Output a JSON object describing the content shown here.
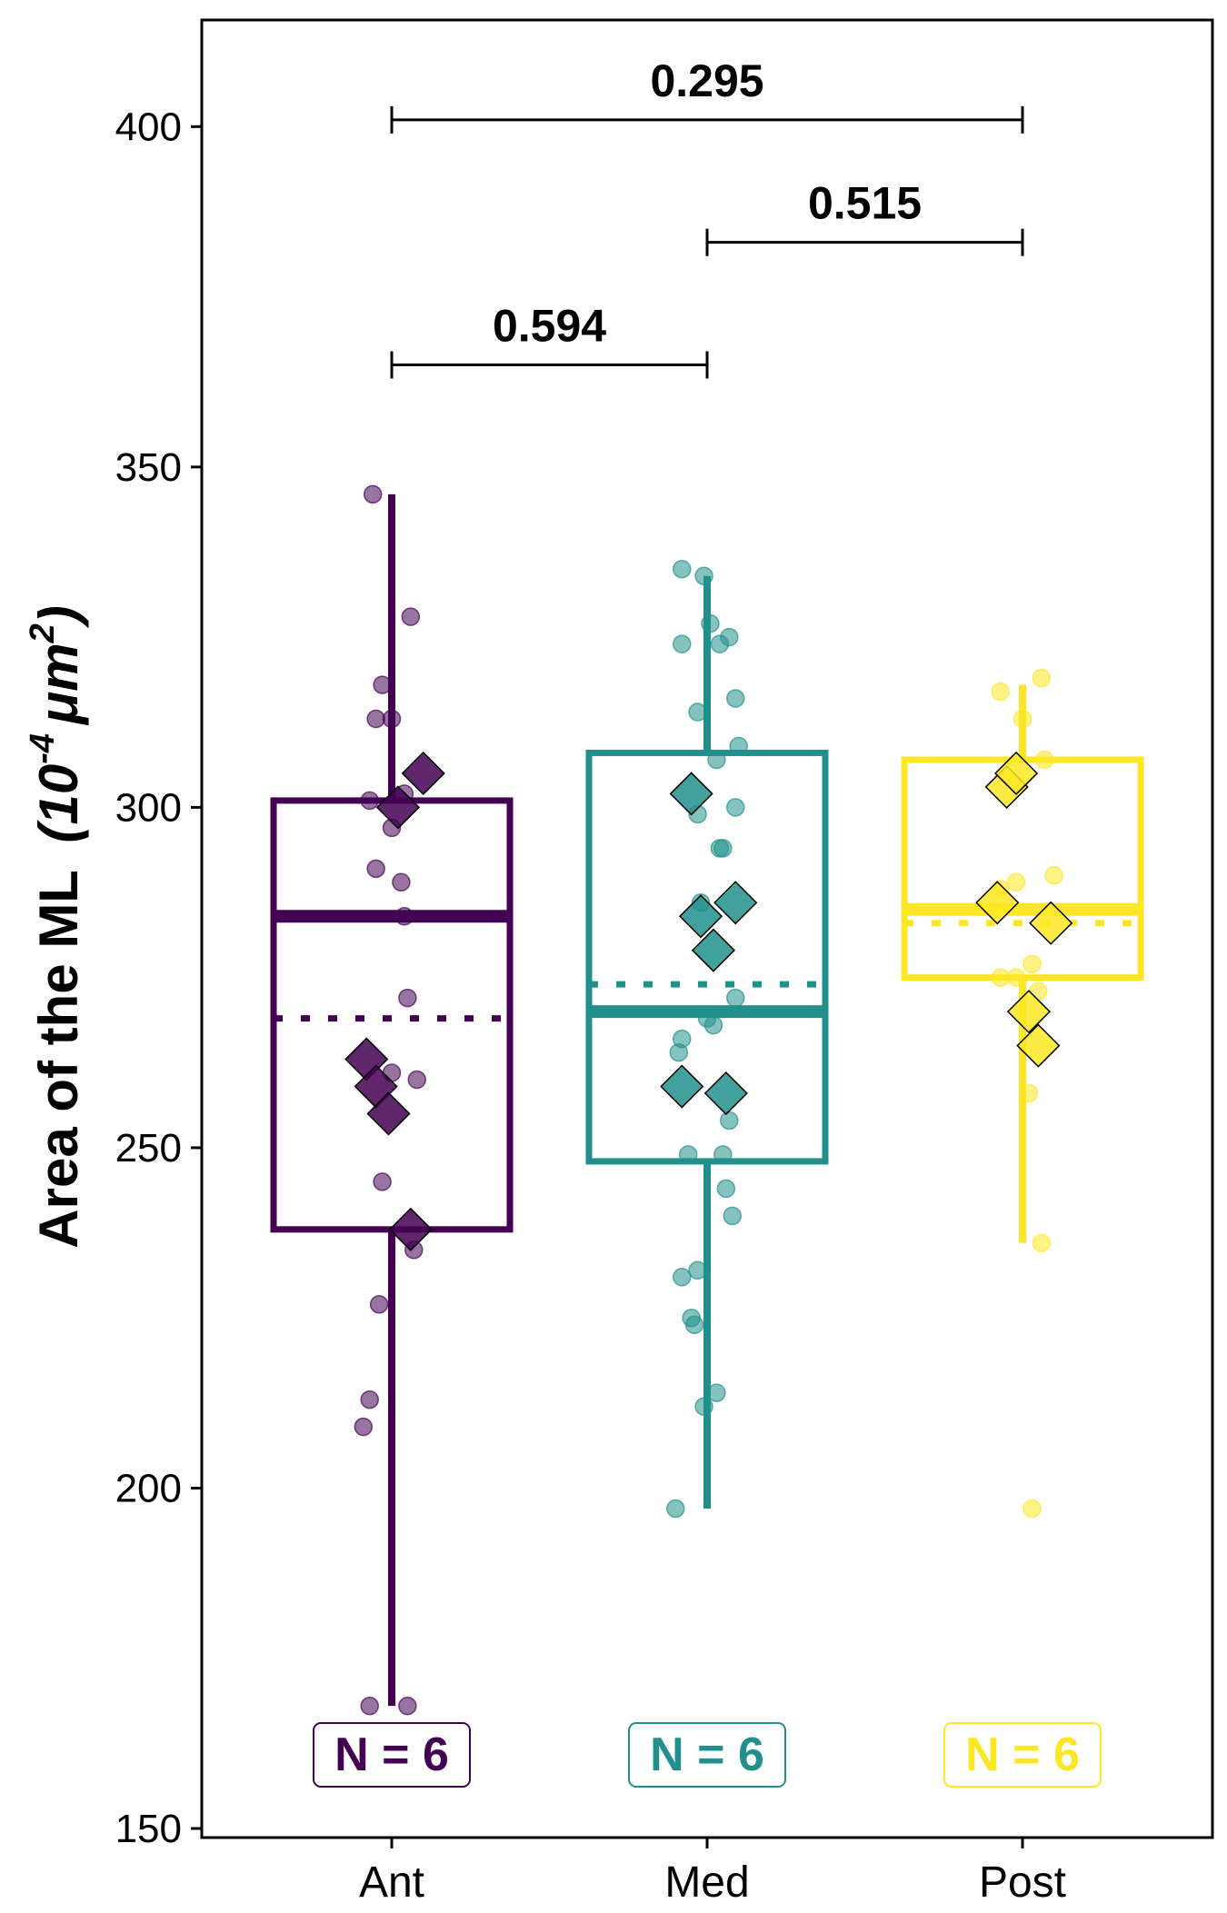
{
  "chart_data": {
    "type": "boxplot",
    "ylabel_main": "Area of the ML",
    "ylabel_unit_base": "10",
    "ylabel_unit_exp": "-4",
    "ylabel_unit_mu": "μm",
    "ylabel_unit_exp2": "2",
    "xlabel": "",
    "ylim": [
      150,
      417
    ],
    "yticks": [
      150,
      200,
      250,
      300,
      350,
      400
    ],
    "grid": false,
    "categories": [
      {
        "name": "Ant",
        "color": "#440154",
        "whisker_low": 168,
        "q1": 238,
        "median": 284,
        "q3": 301,
        "whisker_high": 346,
        "mean": 269,
        "n_label": "N = 6",
        "points": [
          {
            "dx": -0.06,
            "y": 346
          },
          {
            "dx": 0.06,
            "y": 328
          },
          {
            "dx": -0.03,
            "y": 318
          },
          {
            "dx": -0.05,
            "y": 313
          },
          {
            "dx": 0.0,
            "y": 313
          },
          {
            "dx": -0.07,
            "y": 301
          },
          {
            "dx": 0.04,
            "y": 302
          },
          {
            "dx": 0.0,
            "y": 297
          },
          {
            "dx": -0.05,
            "y": 291
          },
          {
            "dx": 0.03,
            "y": 289
          },
          {
            "dx": 0.04,
            "y": 284
          },
          {
            "dx": 0.05,
            "y": 272
          },
          {
            "dx": 0.0,
            "y": 261
          },
          {
            "dx": 0.08,
            "y": 260
          },
          {
            "dx": -0.03,
            "y": 245
          },
          {
            "dx": 0.07,
            "y": 235
          },
          {
            "dx": -0.04,
            "y": 227
          },
          {
            "dx": -0.07,
            "y": 213
          },
          {
            "dx": -0.09,
            "y": 209
          },
          {
            "dx": -0.07,
            "y": 168
          },
          {
            "dx": 0.05,
            "y": 168
          }
        ],
        "replicates": [
          {
            "dx": 0.1,
            "y": 305
          },
          {
            "dx": 0.02,
            "y": 300
          },
          {
            "dx": -0.08,
            "y": 263
          },
          {
            "dx": -0.05,
            "y": 259
          },
          {
            "dx": -0.01,
            "y": 255
          },
          {
            "dx": 0.06,
            "y": 238
          }
        ]
      },
      {
        "name": "Med",
        "color": "#21908c",
        "whisker_low": 197,
        "q1": 248,
        "median": 270,
        "q3": 308,
        "whisker_high": 334,
        "mean": 274,
        "n_label": "N = 6",
        "points": [
          {
            "dx": -0.08,
            "y": 335
          },
          {
            "dx": -0.01,
            "y": 334
          },
          {
            "dx": 0.01,
            "y": 327
          },
          {
            "dx": -0.08,
            "y": 324
          },
          {
            "dx": 0.07,
            "y": 325
          },
          {
            "dx": 0.04,
            "y": 324
          },
          {
            "dx": 0.09,
            "y": 316
          },
          {
            "dx": -0.03,
            "y": 314
          },
          {
            "dx": 0.1,
            "y": 309
          },
          {
            "dx": 0.03,
            "y": 307
          },
          {
            "dx": -0.03,
            "y": 299
          },
          {
            "dx": 0.09,
            "y": 300
          },
          {
            "dx": 0.04,
            "y": 294
          },
          {
            "dx": 0.05,
            "y": 294
          },
          {
            "dx": -0.02,
            "y": 286
          },
          {
            "dx": 0.09,
            "y": 272
          },
          {
            "dx": 0.0,
            "y": 269
          },
          {
            "dx": 0.02,
            "y": 268
          },
          {
            "dx": -0.08,
            "y": 266
          },
          {
            "dx": -0.09,
            "y": 264
          },
          {
            "dx": 0.07,
            "y": 254
          },
          {
            "dx": -0.06,
            "y": 249
          },
          {
            "dx": 0.05,
            "y": 249
          },
          {
            "dx": 0.06,
            "y": 244
          },
          {
            "dx": 0.08,
            "y": 240
          },
          {
            "dx": -0.03,
            "y": 232
          },
          {
            "dx": -0.08,
            "y": 231
          },
          {
            "dx": -0.05,
            "y": 225
          },
          {
            "dx": -0.04,
            "y": 224
          },
          {
            "dx": 0.03,
            "y": 214
          },
          {
            "dx": -0.01,
            "y": 212
          },
          {
            "dx": -0.1,
            "y": 197
          }
        ],
        "replicates": [
          {
            "dx": -0.05,
            "y": 302
          },
          {
            "dx": 0.09,
            "y": 286
          },
          {
            "dx": -0.02,
            "y": 284
          },
          {
            "dx": 0.02,
            "y": 279
          },
          {
            "dx": -0.08,
            "y": 259
          },
          {
            "dx": 0.06,
            "y": 258
          }
        ]
      },
      {
        "name": "Post",
        "color": "#fde725",
        "whisker_low": 236,
        "q1": 275,
        "median": 285,
        "q3": 307,
        "whisker_high": 318,
        "mean": 283,
        "n_label": "N = 6",
        "points": [
          {
            "dx": 0.06,
            "y": 319
          },
          {
            "dx": -0.07,
            "y": 317
          },
          {
            "dx": 0.0,
            "y": 313
          },
          {
            "dx": 0.07,
            "y": 307
          },
          {
            "dx": 0.1,
            "y": 290
          },
          {
            "dx": -0.07,
            "y": 288
          },
          {
            "dx": -0.02,
            "y": 289
          },
          {
            "dx": 0.03,
            "y": 277
          },
          {
            "dx": -0.07,
            "y": 275
          },
          {
            "dx": -0.02,
            "y": 275
          },
          {
            "dx": 0.05,
            "y": 273
          },
          {
            "dx": 0.02,
            "y": 258
          },
          {
            "dx": 0.06,
            "y": 236
          },
          {
            "dx": 0.03,
            "y": 197
          }
        ],
        "replicates": [
          {
            "dx": -0.05,
            "y": 303
          },
          {
            "dx": -0.02,
            "y": 305
          },
          {
            "dx": -0.08,
            "y": 286
          },
          {
            "dx": 0.09,
            "y": 283
          },
          {
            "dx": 0.02,
            "y": 270
          },
          {
            "dx": 0.05,
            "y": 265
          }
        ]
      }
    ],
    "comparisons": [
      {
        "from": 0,
        "to": 2,
        "y": 401,
        "label": "0.295"
      },
      {
        "from": 1,
        "to": 2,
        "y": 383,
        "label": "0.515"
      },
      {
        "from": 0,
        "to": 1,
        "y": 365,
        "label": "0.594"
      }
    ]
  }
}
